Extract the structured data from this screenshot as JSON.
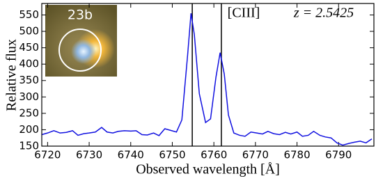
{
  "chart_data": {
    "type": "line",
    "xlabel": "Observed wavelength [Å]",
    "ylabel": "Relative flux",
    "annotations": [
      "[CIII]",
      "z = 2.5425"
    ],
    "inset_label": "23b",
    "x": [
      6718.6,
      6720,
      6721.5,
      6723,
      6724.5,
      6726,
      6727.3,
      6728.7,
      6730,
      6731.5,
      6733,
      6734.3,
      6735.7,
      6737,
      6738.5,
      6740,
      6741.3,
      6742.7,
      6744,
      6745.5,
      6746.8,
      6748.2,
      6749.6,
      6751,
      6752.3,
      6753.7,
      6754.5,
      6755.3,
      6756.5,
      6758,
      6759.2,
      6760.5,
      6761.5,
      6762.5,
      6763.5,
      6764.8,
      6766.2,
      6767.5,
      6768.9,
      6770.3,
      6771.7,
      6773,
      6774.4,
      6775.8,
      6777.2,
      6778.5,
      6780,
      6781.3,
      6782.7,
      6784,
      6785.5,
      6786.8,
      6788.2,
      6789.6,
      6791,
      6792.4,
      6793.8,
      6795.2,
      6796.6,
      6798
    ],
    "series": [
      {
        "color": "#1010e0",
        "values": [
          185,
          190,
          197,
          190,
          192,
          197,
          183,
          188,
          190,
          193,
          207,
          193,
          190,
          195,
          197,
          196,
          197,
          185,
          184,
          190,
          182,
          203,
          198,
          193,
          230,
          430,
          555,
          490,
          310,
          222,
          233,
          360,
          435,
          370,
          245,
          190,
          183,
          180,
          193,
          190,
          187,
          195,
          188,
          185,
          192,
          187,
          193,
          180,
          183,
          195,
          183,
          178,
          175,
          160,
          153,
          158,
          162,
          165,
          160,
          172
        ]
      }
    ],
    "vlines": [
      6754.8,
      6761.8
    ],
    "vline_color": "#000000",
    "xlim": [
      6718.6,
      6798.5
    ],
    "ylim": [
      150,
      585
    ],
    "xticks": [
      6720,
      6730,
      6740,
      6750,
      6760,
      6770,
      6780,
      6790
    ],
    "yticks": [
      150,
      200,
      250,
      300,
      350,
      400,
      450,
      500,
      550
    ]
  }
}
